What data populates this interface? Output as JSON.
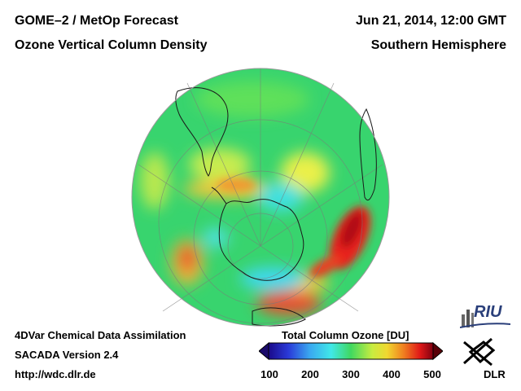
{
  "header": {
    "title_left_1": "GOME–2 / MetOp Forecast",
    "title_left_2": "Ozone Vertical Column Density",
    "title_right_1": "Jun 21, 2014, 12:00 GMT",
    "title_right_2": "Southern Hemisphere"
  },
  "footer": {
    "line1": "4DVar Chemical Data Assimilation",
    "line2": "SACADA Version 2.4",
    "line3": "http://wdc.dlr.de"
  },
  "colorbar": {
    "title": "Total Column Ozone [DU]",
    "ticks": [
      "100",
      "200",
      "300",
      "400",
      "500"
    ]
  },
  "logos": {
    "riu": "RIU",
    "dlr": "DLR"
  },
  "map": {
    "projection": "orthographic, south pole",
    "colors": {
      "low": "#1a1aa0",
      "mid": "#2fd36a",
      "high": "#e01818"
    }
  }
}
